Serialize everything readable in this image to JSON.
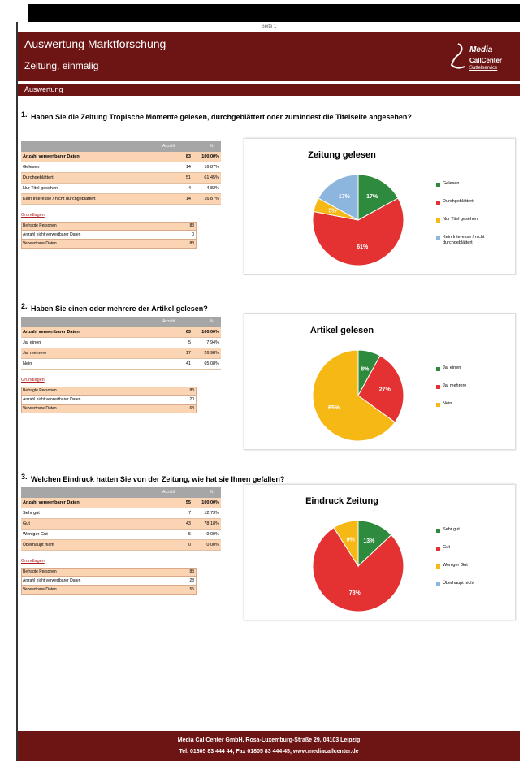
{
  "page_label": "Seite 1",
  "header": {
    "title": "Auswertung Marktforschung",
    "subtitle": "Zeitung, einmalig",
    "logo_line1": "Media",
    "logo_line2": "CallCenter",
    "logo_line3": "Sattelservice"
  },
  "section_title": "Auswertung",
  "table_columns": [
    "Anzahl",
    "%"
  ],
  "questions": [
    {
      "number": "1.",
      "text": "Haben Sie die Zeitung Tropische Momente gelesen, durchgeblättert oder zumindest die Titelseite angesehen?",
      "rows": [
        [
          "Anzahl verwertbarer Daten",
          83,
          "100,00%"
        ],
        [
          "Gelesen",
          14,
          "16,87%"
        ],
        [
          "Durchgeblättert",
          51,
          "61,45%"
        ],
        [
          "Nur Titel gesehen",
          4,
          "4,82%"
        ],
        [
          "Kein Interesse / nicht durchgeblättert",
          14,
          "16,87%"
        ]
      ],
      "basis_title": "Grundlagen",
      "basis_rows": [
        [
          "Befragte Personen",
          83
        ],
        [
          "Anzahl nicht verwertbarer Daten",
          0
        ],
        [
          "Verwertbare Daten",
          83
        ]
      ],
      "chart": {
        "type": "pie",
        "title": "Zeitung gelesen",
        "categories": [
          "Gelesen",
          "Durchgeblättert",
          "Nur Titel gesehen",
          "Kein Interesse / nicht durchgeblättert"
        ],
        "values": [
          17,
          61,
          5,
          17
        ],
        "value_labels": [
          "17%",
          "61%",
          "5%",
          "17%"
        ],
        "colors": [
          "#2e8b3e",
          "#e43131",
          "#f5b815",
          "#8db6df"
        ]
      }
    },
    {
      "number": "2.",
      "text": "Haben Sie einen oder mehrere der Artikel gelesen?",
      "rows": [
        [
          "Anzahl verwertbarer Daten",
          63,
          "100,00%"
        ],
        [
          "Ja, einen",
          5,
          "7,94%"
        ],
        [
          "Ja, mehrere",
          17,
          "26,98%"
        ],
        [
          "Nein",
          41,
          "65,08%"
        ]
      ],
      "basis_title": "Grundlagen",
      "basis_rows": [
        [
          "Befragte Personen",
          83
        ],
        [
          "Anzahl nicht verwertbarer Daten",
          20
        ],
        [
          "Verwertbare Daten",
          63
        ]
      ],
      "chart": {
        "type": "pie",
        "title": "Artikel gelesen",
        "categories": [
          "Ja, einen",
          "Ja, mehrere",
          "Nein"
        ],
        "values": [
          8,
          27,
          65
        ],
        "value_labels": [
          "8%",
          "27%",
          "65%"
        ],
        "colors": [
          "#2e8b3e",
          "#e43131",
          "#f5b815"
        ]
      }
    },
    {
      "number": "3.",
      "text": "Welchen Eindruck hatten Sie von der Zeitung, wie hat sie Ihnen gefallen?",
      "rows": [
        [
          "Anzahl verwertbarer Daten",
          55,
          "100,00%"
        ],
        [
          "Sehr gut",
          7,
          "12,73%"
        ],
        [
          "Gut",
          43,
          "78,18%"
        ],
        [
          "Weniger Gut",
          5,
          "9,09%"
        ],
        [
          "Überhaupt nicht",
          0,
          "0,00%"
        ]
      ],
      "basis_title": "Grundlagen",
      "basis_rows": [
        [
          "Befragte Personen",
          83
        ],
        [
          "Anzahl nicht verwertbarer Daten",
          28
        ],
        [
          "Verwertbare Daten",
          55
        ]
      ],
      "chart": {
        "type": "pie",
        "title": "Eindruck Zeitung",
        "categories": [
          "Sehr gut",
          "Gut",
          "Weniger Gut",
          "Überhaupt nicht"
        ],
        "values": [
          13,
          78,
          9,
          0
        ],
        "value_labels": [
          "13%",
          "78%",
          "9%",
          null
        ],
        "colors": [
          "#2e8b3e",
          "#e43131",
          "#f5b815",
          "#8db6df"
        ]
      }
    }
  ],
  "footer": {
    "line1": "Media CallCenter GmbH, Rosa-Luxemburg-Straße 29, 04103 Leipzig",
    "line2": "Tel. 01805 83 444 44, Fax 01805 83 444 45, www.mediacallcenter.de"
  }
}
